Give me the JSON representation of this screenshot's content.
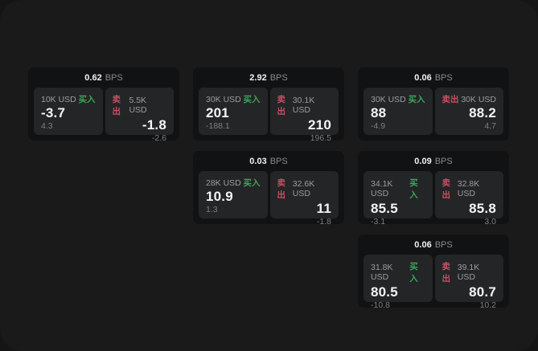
{
  "labels": {
    "unit": "BPS",
    "buy": "买入",
    "sell": "卖出"
  },
  "colors": {
    "page_bg": "#151515",
    "surface_bg": "#1a1a1a",
    "card_bg": "#111213",
    "tile_bg": "#242526",
    "buy_green": "#39a658",
    "sell_red": "#c84f64",
    "primary_text": "#f5f5f5",
    "muted_text": "#9d9d9d",
    "faint_text": "#7e7e7e"
  },
  "cards": [
    {
      "col": 1,
      "row": 1,
      "bps": "0.62",
      "buy": {
        "amount": "10K USD",
        "price": "-3.7",
        "sub": "4.3"
      },
      "sell": {
        "amount": "5.5K USD",
        "price": "-1.8",
        "sub": "-2.6"
      }
    },
    {
      "col": 2,
      "row": 1,
      "bps": "2.92",
      "buy": {
        "amount": "30K USD",
        "price": "201",
        "sub": "-188.1"
      },
      "sell": {
        "amount": "30.1K USD",
        "price": "210",
        "sub": "196.5"
      }
    },
    {
      "col": 3,
      "row": 1,
      "bps": "0.06",
      "buy": {
        "amount": "30K USD",
        "price": "88",
        "sub": "-4.9"
      },
      "sell": {
        "amount": "30K USD",
        "price": "88.2",
        "sub": "4.7"
      }
    },
    {
      "col": 2,
      "row": 2,
      "bps": "0.03",
      "buy": {
        "amount": "28K USD",
        "price": "10.9",
        "sub": "1.3"
      },
      "sell": {
        "amount": "32.6K USD",
        "price": "11",
        "sub": "-1.8"
      }
    },
    {
      "col": 3,
      "row": 2,
      "bps": "0.09",
      "buy": {
        "amount": "34.1K USD",
        "price": "85.5",
        "sub": "-3.1"
      },
      "sell": {
        "amount": "32.8K USD",
        "price": "85.8",
        "sub": "3.0"
      }
    },
    {
      "col": 3,
      "row": 3,
      "bps": "0.06",
      "buy": {
        "amount": "31.8K USD",
        "price": "80.5",
        "sub": "-10.8"
      },
      "sell": {
        "amount": "39.1K USD",
        "price": "80.7",
        "sub": "10.2"
      }
    }
  ]
}
